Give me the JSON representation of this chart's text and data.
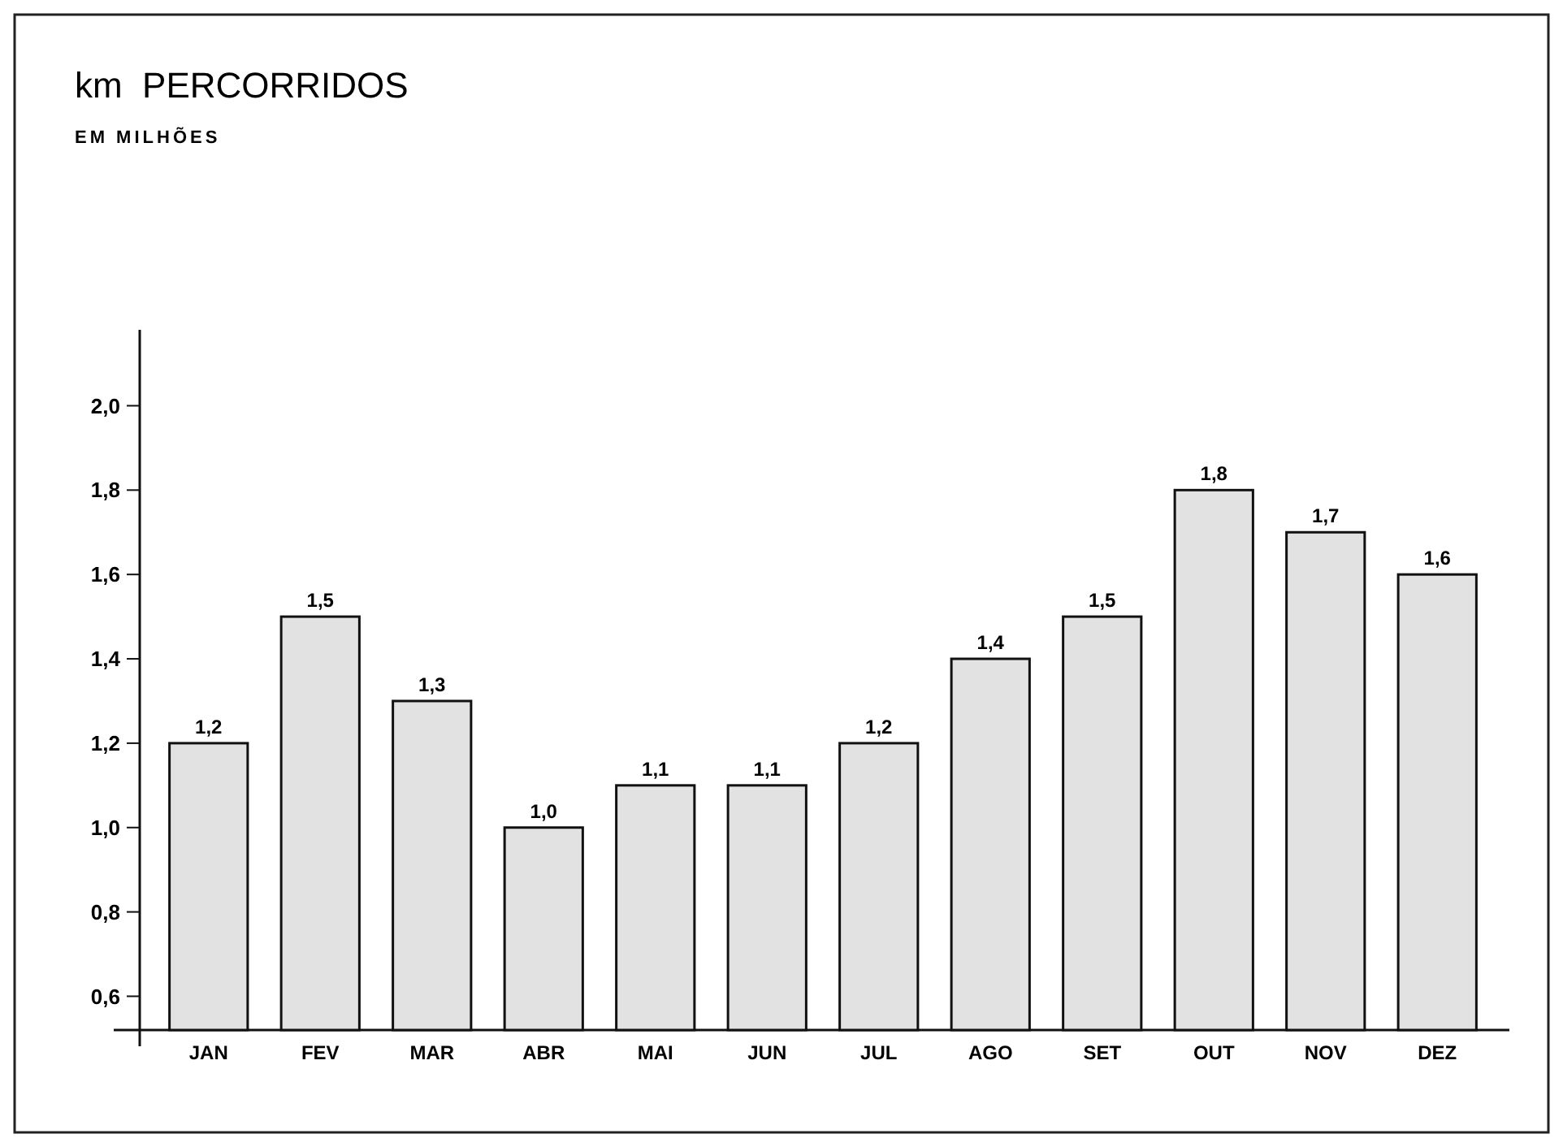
{
  "chart_data": {
    "type": "bar",
    "title": "km  PERCORRIDOS",
    "subtitle": "EM MILHÕES",
    "categories": [
      "JAN",
      "FEV",
      "MAR",
      "ABR",
      "MAI",
      "JUN",
      "JUL",
      "AGO",
      "SET",
      "OUT",
      "NOV",
      "DEZ"
    ],
    "values": [
      1.2,
      1.5,
      1.3,
      1.0,
      1.1,
      1.1,
      1.2,
      1.4,
      1.5,
      1.8,
      1.7,
      1.6
    ],
    "value_labels": [
      "1,2",
      "1,5",
      "1,3",
      "1,0",
      "1,1",
      "1,1",
      "1,2",
      "1,4",
      "1,5",
      "1,8",
      "1,7",
      "1,6"
    ],
    "color": "#e2e2e2",
    "ylim": [
      0.52,
      2.18
    ],
    "yticks": [
      {
        "value": 0.6,
        "label": "0,6"
      },
      {
        "value": 0.8,
        "label": "0,8"
      },
      {
        "value": 1.0,
        "label": "1,0"
      },
      {
        "value": 1.2,
        "label": "1,2"
      },
      {
        "value": 1.4,
        "label": "1,4"
      },
      {
        "value": 1.6,
        "label": "1,6"
      },
      {
        "value": 1.8,
        "label": "1,8"
      },
      {
        "value": 2.0,
        "label": "2,0"
      }
    ],
    "grid": false
  }
}
